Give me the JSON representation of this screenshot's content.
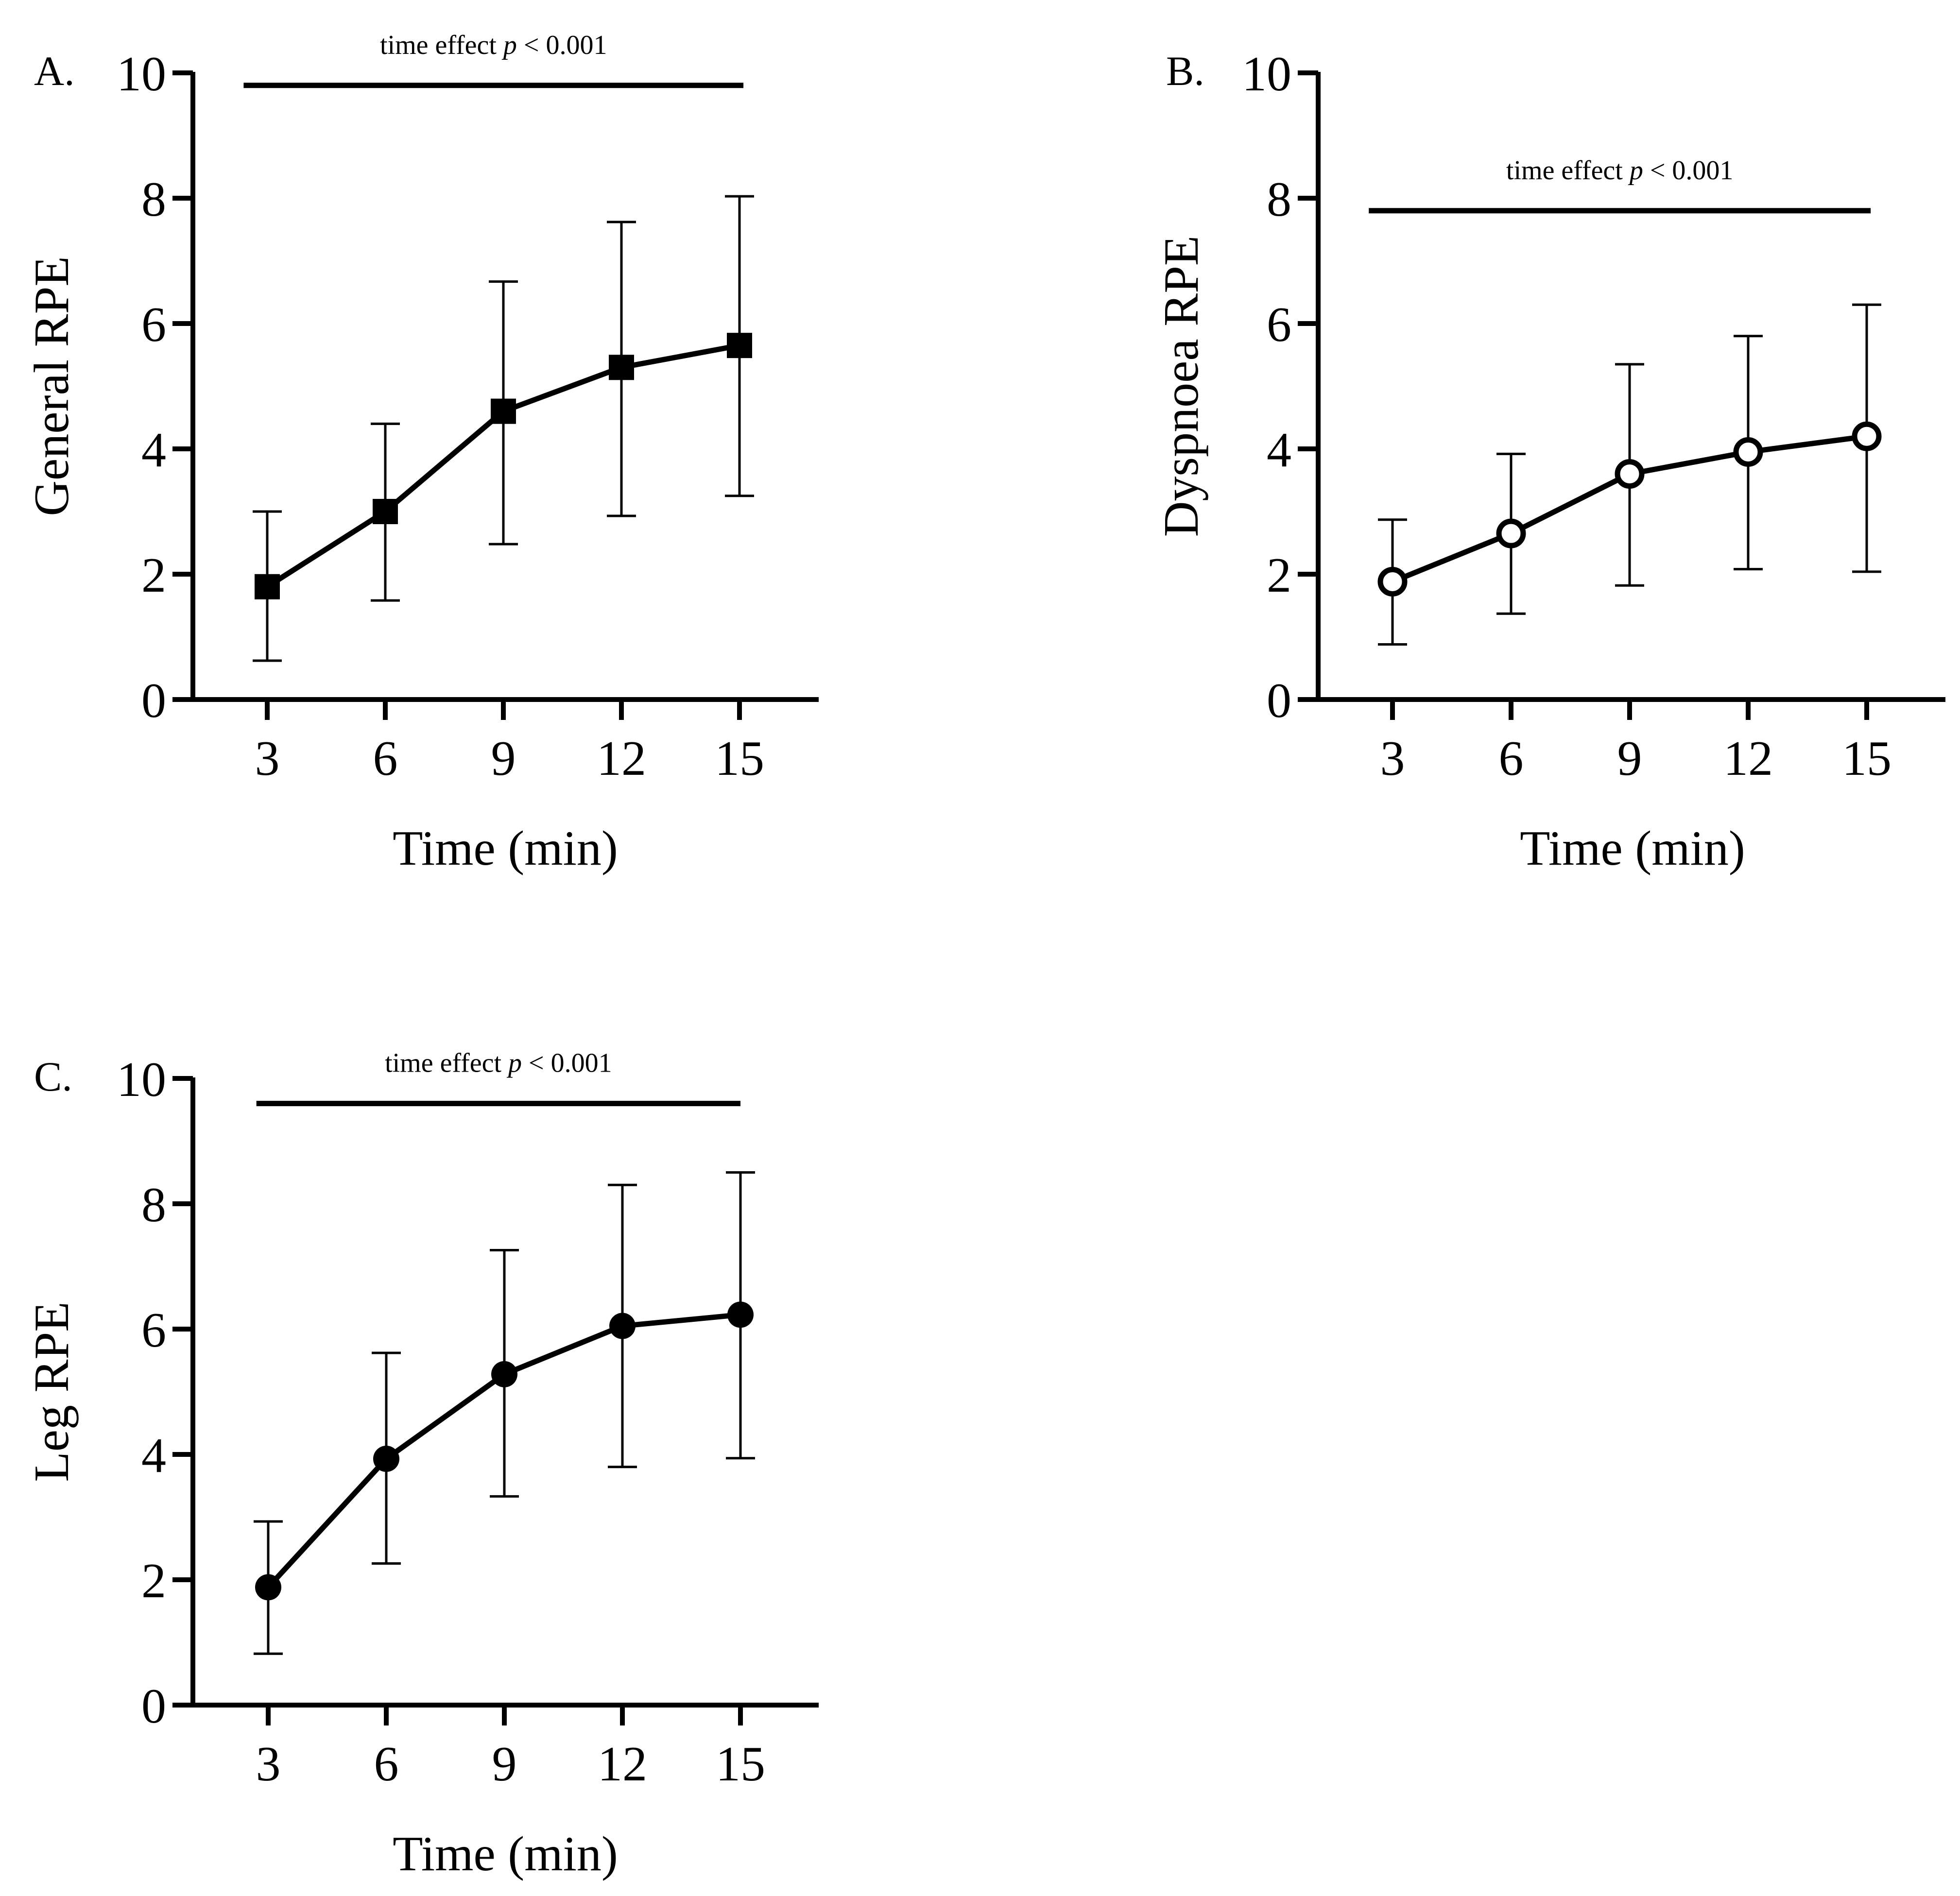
{
  "chart_data": [
    {
      "type": "line",
      "panel_label": "A.",
      "ylabel": "General RPE",
      "xlabel": "Time (min)",
      "x": [
        3,
        6,
        9,
        12,
        15
      ],
      "xticks": [
        "3",
        "6",
        "9",
        "12",
        "15"
      ],
      "yticks": [
        "0",
        "2",
        "4",
        "6",
        "8",
        "10"
      ],
      "ylim": [
        0,
        10
      ],
      "marker": "filled-square",
      "values": [
        1.8,
        3.0,
        4.6,
        5.3,
        5.65
      ],
      "err_lower": [
        0.62,
        1.58,
        2.48,
        2.93,
        3.25
      ],
      "err_upper": [
        3.0,
        4.4,
        6.67,
        7.62,
        8.03
      ],
      "annotation": {
        "prefix": "time effect ",
        "p": "p",
        "suffix": " < 0.001",
        "level": 9.8
      }
    },
    {
      "type": "line",
      "panel_label": "B.",
      "ylabel": "Dyspnoea RPE",
      "xlabel": "Time (min)",
      "x": [
        3,
        6,
        9,
        12,
        15
      ],
      "xticks": [
        "3",
        "6",
        "9",
        "12",
        "15"
      ],
      "yticks": [
        "0",
        "2",
        "4",
        "6",
        "8",
        "10"
      ],
      "ylim": [
        0,
        10
      ],
      "marker": "open-circle",
      "values": [
        1.88,
        2.65,
        3.6,
        3.95,
        4.2
      ],
      "err_lower": [
        0.88,
        1.37,
        1.82,
        2.08,
        2.04
      ],
      "err_upper": [
        2.87,
        3.92,
        5.35,
        5.8,
        6.3
      ],
      "annotation": {
        "prefix": "time effect ",
        "p": "p",
        "suffix": " < 0.001",
        "level": 7.8
      }
    },
    {
      "type": "line",
      "panel_label": "C.",
      "ylabel": "Leg RPE",
      "xlabel": "Time (min)",
      "x": [
        3,
        6,
        9,
        12,
        15
      ],
      "xticks": [
        "3",
        "6",
        "9",
        "12",
        "15"
      ],
      "yticks": [
        "0",
        "2",
        "4",
        "6",
        "8",
        "10"
      ],
      "ylim": [
        0,
        10
      ],
      "marker": "filled-circle",
      "values": [
        1.88,
        3.93,
        5.28,
        6.05,
        6.23
      ],
      "err_lower": [
        0.82,
        2.26,
        3.33,
        3.8,
        3.94
      ],
      "err_upper": [
        2.93,
        5.62,
        7.26,
        8.3,
        8.5
      ],
      "annotation": {
        "prefix": "time effect ",
        "p": "p",
        "suffix": " < 0.001",
        "level": 9.6
      }
    }
  ]
}
